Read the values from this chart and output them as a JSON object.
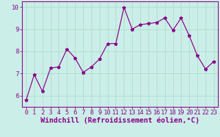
{
  "x": [
    0,
    1,
    2,
    3,
    4,
    5,
    6,
    7,
    8,
    9,
    10,
    11,
    12,
    13,
    14,
    15,
    16,
    17,
    18,
    19,
    20,
    21,
    22,
    23
  ],
  "y": [
    5.8,
    6.95,
    6.2,
    7.25,
    7.3,
    8.1,
    7.7,
    7.05,
    7.3,
    7.65,
    8.35,
    8.35,
    9.98,
    9.0,
    9.2,
    9.25,
    9.3,
    9.5,
    8.95,
    9.5,
    8.7,
    7.8,
    7.2,
    7.55
  ],
  "line_color": "#880088",
  "marker": "*",
  "bg_color": "#cceee8",
  "grid_color": "#aaddcc",
  "axis_color": "#880088",
  "xlabel": "Windchill (Refroidissement éolien,°C)",
  "ylim": [
    5.5,
    10.25
  ],
  "xlim": [
    -0.5,
    23.5
  ],
  "yticks": [
    6,
    7,
    8,
    9,
    10
  ],
  "xticks": [
    0,
    1,
    2,
    3,
    4,
    5,
    6,
    7,
    8,
    9,
    10,
    11,
    12,
    13,
    14,
    15,
    16,
    17,
    18,
    19,
    20,
    21,
    22,
    23
  ],
  "font_color": "#880088",
  "tick_fontsize": 6.5,
  "xlabel_fontsize": 7.5
}
